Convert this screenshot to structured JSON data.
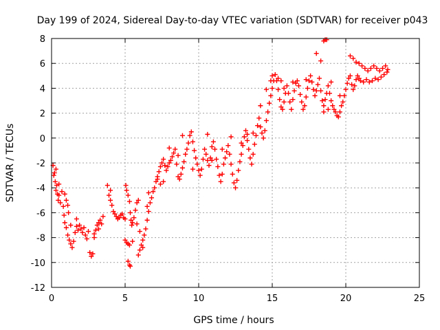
{
  "chart_data": {
    "type": "scatter",
    "title": "Day 199 of 2024, Sidereal Day-to-day VTEC variation (SDTVAR) for receiver p043",
    "xlabel": "GPS time / hours",
    "ylabel": "SDTVAR / TECUs",
    "xlim": [
      0,
      25
    ],
    "ylim": [
      -12,
      8
    ],
    "x_ticks": [
      "0",
      "5",
      "10",
      "15",
      "20",
      "25"
    ],
    "y_ticks": [
      "-12",
      "-10",
      "-8",
      "-6",
      "-4",
      "-2",
      "0",
      "2",
      "4",
      "6",
      "8"
    ],
    "grid": true,
    "marker": "+",
    "series": [
      {
        "color": "#ff0000",
        "points": [
          [
            0.1,
            -2.2
          ],
          [
            0.2,
            -2.8
          ],
          [
            0.25,
            -3.5
          ],
          [
            0.3,
            -4.2
          ],
          [
            0.35,
            -3.8
          ],
          [
            0.4,
            -4.5
          ],
          [
            0.45,
            -5.0
          ],
          [
            0.5,
            -4.6
          ],
          [
            0.6,
            -5.2
          ],
          [
            0.7,
            -4.3
          ],
          [
            0.8,
            -5.5
          ],
          [
            0.85,
            -6.2
          ],
          [
            0.9,
            -6.8
          ],
          [
            1.0,
            -7.2
          ],
          [
            1.1,
            -7.8
          ],
          [
            1.2,
            -8.2
          ],
          [
            1.3,
            -8.5
          ],
          [
            1.4,
            -8.8
          ],
          [
            1.5,
            -8.3
          ],
          [
            1.6,
            -7.6
          ],
          [
            1.7,
            -7.1
          ],
          [
            1.8,
            -7.4
          ],
          [
            1.9,
            -7.0
          ],
          [
            2.0,
            -7.3
          ],
          [
            2.1,
            -7.6
          ],
          [
            2.2,
            -7.2
          ],
          [
            2.3,
            -7.8
          ],
          [
            2.4,
            -8.1
          ],
          [
            2.5,
            -7.5
          ],
          [
            2.6,
            -9.2
          ],
          [
            2.7,
            -9.5
          ],
          [
            2.8,
            -9.3
          ],
          [
            2.9,
            -8.0
          ],
          [
            3.0,
            -7.4
          ],
          [
            3.1,
            -7.0
          ],
          [
            3.2,
            -6.8
          ],
          [
            3.3,
            -6.6
          ],
          [
            3.4,
            -6.9
          ],
          [
            3.5,
            -6.3
          ],
          [
            0.9,
            -4.5
          ],
          [
            1.0,
            -5.0
          ],
          [
            1.1,
            -5.4
          ],
          [
            1.15,
            -6.0
          ],
          [
            3.8,
            -3.8
          ],
          [
            3.9,
            -4.6
          ],
          [
            4.0,
            -5.0
          ],
          [
            4.1,
            -5.4
          ],
          [
            4.2,
            -5.9
          ],
          [
            4.3,
            -6.1
          ],
          [
            4.4,
            -6.3
          ],
          [
            4.5,
            -6.5
          ],
          [
            4.6,
            -6.4
          ],
          [
            4.7,
            -6.2
          ],
          [
            4.8,
            -6.1
          ],
          [
            4.9,
            -6.4
          ],
          [
            5.0,
            -6.5
          ],
          [
            5.05,
            -3.8
          ],
          [
            5.1,
            -4.2
          ],
          [
            5.2,
            -4.6
          ],
          [
            5.3,
            -5.1
          ],
          [
            5.35,
            -6.0
          ],
          [
            5.4,
            -6.6
          ],
          [
            5.45,
            -7.0
          ],
          [
            5.5,
            -6.8
          ],
          [
            5.6,
            -6.4
          ],
          [
            5.7,
            -5.8
          ],
          [
            5.8,
            -5.2
          ],
          [
            5.9,
            -5.0
          ],
          [
            5.0,
            -8.2
          ],
          [
            5.1,
            -8.4
          ],
          [
            5.2,
            -8.5
          ],
          [
            5.3,
            -8.6
          ],
          [
            5.5,
            -8.3
          ],
          [
            5.2,
            -9.9
          ],
          [
            5.3,
            -10.2
          ],
          [
            5.35,
            -10.3
          ],
          [
            5.9,
            -9.4
          ],
          [
            6.0,
            -9.0
          ],
          [
            6.1,
            -8.6
          ],
          [
            6.2,
            -8.2
          ],
          [
            6.3,
            -7.8
          ],
          [
            6.4,
            -7.3
          ],
          [
            6.5,
            -6.6
          ],
          [
            6.6,
            -5.9
          ],
          [
            6.7,
            -5.2
          ],
          [
            6.8,
            -4.8
          ],
          [
            6.9,
            -4.3
          ],
          [
            7.0,
            -4.0
          ],
          [
            7.1,
            -3.5
          ],
          [
            7.2,
            -3.1
          ],
          [
            7.3,
            -2.7
          ],
          [
            7.4,
            -2.3
          ],
          [
            7.5,
            -2.0
          ],
          [
            7.6,
            -1.7
          ],
          [
            7.7,
            -2.2
          ],
          [
            7.8,
            -2.6
          ],
          [
            7.9,
            -2.3
          ],
          [
            8.0,
            -2.0
          ],
          [
            8.1,
            -1.8
          ],
          [
            8.2,
            -1.5
          ],
          [
            8.3,
            -1.2
          ],
          [
            8.4,
            -0.9
          ],
          [
            8.5,
            -2.1
          ],
          [
            8.6,
            -3.1
          ],
          [
            8.7,
            -3.3
          ],
          [
            8.8,
            -2.9
          ],
          [
            8.9,
            -2.4
          ],
          [
            9.0,
            -1.9
          ],
          [
            9.1,
            -1.3
          ],
          [
            9.2,
            -0.9
          ],
          [
            9.3,
            -0.4
          ],
          [
            9.4,
            0.2
          ],
          [
            9.5,
            0.5
          ],
          [
            9.6,
            -0.3
          ],
          [
            9.7,
            -1.0
          ],
          [
            9.8,
            -1.6
          ],
          [
            9.9,
            -2.1
          ],
          [
            10.0,
            -2.6
          ],
          [
            10.1,
            -3.0
          ],
          [
            10.2,
            -2.5
          ],
          [
            10.3,
            -1.7
          ],
          [
            10.4,
            -0.9
          ],
          [
            10.5,
            -1.3
          ],
          [
            10.6,
            -1.8
          ],
          [
            10.7,
            -2.2
          ],
          [
            10.8,
            -1.6
          ],
          [
            10.9,
            -0.7
          ],
          [
            11.0,
            -0.3
          ],
          [
            11.1,
            -0.9
          ],
          [
            11.2,
            -1.7
          ],
          [
            11.3,
            -2.3
          ],
          [
            11.4,
            -3.0
          ],
          [
            11.5,
            -3.5
          ],
          [
            11.6,
            -2.9
          ],
          [
            11.7,
            -2.1
          ],
          [
            11.8,
            -1.6
          ],
          [
            11.9,
            -1.1
          ],
          [
            12.0,
            -0.6
          ],
          [
            12.1,
            -1.3
          ],
          [
            12.2,
            -2.1
          ],
          [
            12.3,
            -2.9
          ],
          [
            12.4,
            -3.6
          ],
          [
            12.5,
            -4.0
          ],
          [
            12.6,
            -3.4
          ],
          [
            12.7,
            -2.6
          ],
          [
            12.8,
            -1.9
          ],
          [
            12.9,
            -1.3
          ],
          [
            13.0,
            -0.6
          ],
          [
            13.1,
            0.1
          ],
          [
            13.2,
            0.6
          ],
          [
            13.3,
            -0.2
          ],
          [
            13.4,
            -0.9
          ],
          [
            13.5,
            -1.6
          ],
          [
            13.6,
            -2.1
          ],
          [
            13.7,
            -1.3
          ],
          [
            13.8,
            -0.5
          ],
          [
            13.9,
            0.2
          ],
          [
            14.0,
            1.0
          ],
          [
            14.1,
            1.6
          ],
          [
            14.2,
            0.9
          ],
          [
            14.3,
            0.4
          ],
          [
            14.4,
            0.0
          ],
          [
            14.5,
            0.6
          ],
          [
            14.6,
            1.4
          ],
          [
            14.7,
            2.1
          ],
          [
            14.8,
            2.8
          ],
          [
            14.9,
            3.4
          ],
          [
            15.0,
            4.0
          ],
          [
            15.1,
            4.6
          ],
          [
            15.2,
            5.1
          ],
          [
            15.3,
            4.6
          ],
          [
            15.4,
            3.9
          ],
          [
            15.5,
            3.1
          ],
          [
            15.6,
            2.5
          ],
          [
            15.7,
            2.3
          ],
          [
            15.8,
            2.9
          ],
          [
            15.9,
            3.6
          ],
          [
            16.0,
            4.2
          ],
          [
            16.1,
            3.6
          ],
          [
            16.2,
            2.9
          ],
          [
            16.3,
            2.3
          ],
          [
            16.4,
            3.1
          ],
          [
            16.5,
            3.8
          ],
          [
            16.6,
            4.4
          ],
          [
            16.7,
            4.6
          ],
          [
            16.8,
            4.2
          ],
          [
            16.9,
            3.5
          ],
          [
            17.0,
            2.9
          ],
          [
            17.1,
            2.3
          ],
          [
            17.2,
            2.6
          ],
          [
            17.3,
            3.3
          ],
          [
            17.4,
            4.0
          ],
          [
            17.5,
            4.6
          ],
          [
            17.6,
            5.0
          ],
          [
            17.7,
            4.5
          ],
          [
            17.8,
            3.9
          ],
          [
            17.9,
            3.4
          ],
          [
            18.0,
            3.8
          ],
          [
            18.1,
            4.3
          ],
          [
            18.2,
            4.8
          ],
          [
            18.3,
            3.8
          ],
          [
            18.4,
            3.0
          ],
          [
            18.5,
            2.6
          ],
          [
            18.6,
            3.1
          ],
          [
            18.7,
            3.6
          ],
          [
            18.8,
            4.2
          ],
          [
            18.9,
            3.6
          ],
          [
            19.0,
            3.0
          ],
          [
            19.1,
            2.6
          ],
          [
            19.2,
            2.3
          ],
          [
            19.3,
            2.1
          ],
          [
            19.4,
            1.8
          ],
          [
            19.5,
            1.7
          ],
          [
            19.6,
            2.1
          ],
          [
            19.7,
            2.6
          ],
          [
            19.8,
            2.9
          ],
          [
            19.9,
            3.4
          ],
          [
            20.0,
            3.9
          ],
          [
            20.1,
            4.4
          ],
          [
            20.2,
            4.8
          ],
          [
            20.3,
            5.0
          ],
          [
            20.4,
            4.3
          ],
          [
            20.5,
            3.9
          ],
          [
            20.6,
            4.2
          ],
          [
            20.7,
            4.7
          ],
          [
            20.8,
            5.0
          ],
          [
            20.9,
            4.8
          ],
          [
            21.0,
            4.6
          ],
          [
            21.2,
            4.5
          ],
          [
            21.4,
            4.7
          ],
          [
            21.6,
            4.5
          ],
          [
            21.8,
            4.6
          ],
          [
            22.0,
            4.8
          ],
          [
            22.2,
            4.7
          ],
          [
            22.4,
            4.9
          ],
          [
            22.6,
            5.1
          ],
          [
            22.8,
            5.3
          ],
          [
            20.3,
            6.6
          ],
          [
            20.5,
            6.4
          ],
          [
            20.7,
            6.1
          ],
          [
            20.9,
            6.0
          ],
          [
            21.1,
            5.8
          ],
          [
            21.3,
            5.6
          ],
          [
            21.5,
            5.4
          ],
          [
            21.7,
            5.6
          ],
          [
            21.9,
            5.8
          ],
          [
            22.1,
            5.6
          ],
          [
            22.3,
            5.4
          ],
          [
            22.5,
            5.6
          ],
          [
            22.7,
            5.8
          ],
          [
            22.85,
            5.5
          ],
          [
            18.5,
            7.8
          ],
          [
            18.6,
            7.9
          ],
          [
            18.7,
            7.9
          ],
          [
            18.3,
            6.2
          ],
          [
            18.0,
            6.8
          ],
          [
            14.9,
            4.6
          ],
          [
            15.0,
            5.0
          ],
          [
            15.4,
            4.8
          ],
          [
            15.6,
            4.6
          ],
          [
            15.8,
            4.0
          ],
          [
            13.3,
            0.3
          ],
          [
            12.2,
            0.1
          ],
          [
            10.6,
            0.3
          ],
          [
            8.9,
            0.2
          ],
          [
            7.2,
            -3.3
          ],
          [
            7.6,
            -3.5
          ],
          [
            6.6,
            -4.4
          ],
          [
            6.5,
            -5.5
          ],
          [
            5.8,
            -6.9
          ],
          [
            6.0,
            -7.5
          ],
          [
            6.2,
            -8.8
          ],
          [
            4.0,
            -4.2
          ],
          [
            3.2,
            -7.3
          ],
          [
            2.9,
            -7.7
          ],
          [
            1.7,
            -6.5
          ],
          [
            1.3,
            -7.0
          ],
          [
            0.5,
            -3.7
          ],
          [
            0.15,
            -3.0
          ],
          [
            0.3,
            -2.5
          ],
          [
            17.3,
            4.7
          ],
          [
            16.4,
            4.5
          ],
          [
            19.6,
            3.4
          ],
          [
            19.0,
            4.5
          ],
          [
            18.8,
            2.3
          ],
          [
            18.5,
            2.1
          ],
          [
            14.6,
            3.9
          ],
          [
            14.2,
            2.6
          ],
          [
            13.7,
            0.4
          ],
          [
            12.9,
            -0.4
          ],
          [
            11.6,
            -0.9
          ],
          [
            10.9,
            -1.8
          ],
          [
            9.6,
            -2.5
          ],
          [
            8.6,
            -1.4
          ],
          [
            8.0,
            -0.8
          ],
          [
            7.4,
            -3.7
          ]
        ]
      }
    ]
  }
}
